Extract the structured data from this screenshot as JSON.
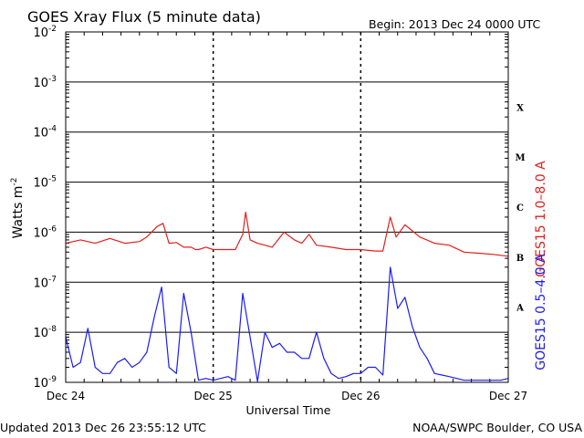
{
  "chart_data": {
    "type": "line",
    "title": "GOES Xray Flux (5 minute data)",
    "begin_label": "Begin:  2013 Dec 24 0000 UTC",
    "xlabel": "Universal Time",
    "ylabel_main": "Watts m",
    "ylabel_exp": "-2",
    "yscale": "log",
    "ylim_exponent": [
      -9,
      -2
    ],
    "xlim_days": [
      0,
      3
    ],
    "x_ticks": [
      "Dec 24",
      "Dec 25",
      "Dec 26",
      "Dec 27"
    ],
    "y_ticks": [
      {
        "exp": -2,
        "label": "-2"
      },
      {
        "exp": -3,
        "label": "-3"
      },
      {
        "exp": -4,
        "label": "-4"
      },
      {
        "exp": -5,
        "label": "-5"
      },
      {
        "exp": -6,
        "label": "-6"
      },
      {
        "exp": -7,
        "label": "-7"
      },
      {
        "exp": -8,
        "label": "-8"
      },
      {
        "exp": -9,
        "label": "-9"
      }
    ],
    "y_tick_base": "10",
    "flare_classes": [
      {
        "label": "X",
        "band_exp": -4
      },
      {
        "label": "M",
        "band_exp": -5
      },
      {
        "label": "C",
        "band_exp": -6
      },
      {
        "label": "B",
        "band_exp": -7
      },
      {
        "label": "A",
        "band_exp": -8
      }
    ],
    "series": [
      {
        "name": "GOES15 1.0–8.0 A",
        "color": "#e0201c",
        "x": [
          0.0,
          0.1,
          0.2,
          0.3,
          0.4,
          0.5,
          0.55,
          0.62,
          0.66,
          0.7,
          0.75,
          0.8,
          0.85,
          0.88,
          0.9,
          0.95,
          1.0,
          1.05,
          1.15,
          1.2,
          1.22,
          1.25,
          1.3,
          1.35,
          1.4,
          1.48,
          1.55,
          1.6,
          1.65,
          1.7,
          1.8,
          1.9,
          2.0,
          2.1,
          2.15,
          2.2,
          2.24,
          2.3,
          2.4,
          2.5,
          2.6,
          2.7,
          2.8,
          2.9,
          3.0
        ],
        "values": [
          6e-07,
          7e-07,
          6e-07,
          7.5e-07,
          6e-07,
          6.5e-07,
          8e-07,
          1.3e-06,
          1.5e-06,
          6e-07,
          6.2e-07,
          5e-07,
          5e-07,
          4.5e-07,
          4.5e-07,
          5e-07,
          4.5e-07,
          4.5e-07,
          4.5e-07,
          9e-07,
          2.5e-06,
          7e-07,
          6e-07,
          5.5e-07,
          5e-07,
          1e-06,
          7e-07,
          6e-07,
          9e-07,
          5.5e-07,
          5e-07,
          4.5e-07,
          4.5e-07,
          4.2e-07,
          4.2e-07,
          2e-06,
          8e-07,
          1.4e-06,
          8e-07,
          6e-07,
          5.5e-07,
          4e-07,
          3.8e-07,
          3.6e-07,
          3.3e-07
        ]
      },
      {
        "name": "GOES15 0.5–4.0 A",
        "color": "#1c1cf0",
        "x": [
          0.0,
          0.05,
          0.1,
          0.15,
          0.2,
          0.25,
          0.3,
          0.35,
          0.4,
          0.45,
          0.5,
          0.55,
          0.6,
          0.65,
          0.7,
          0.75,
          0.8,
          0.85,
          0.9,
          0.95,
          1.0,
          1.05,
          1.1,
          1.15,
          1.2,
          1.25,
          1.3,
          1.35,
          1.4,
          1.45,
          1.5,
          1.55,
          1.6,
          1.65,
          1.7,
          1.75,
          1.8,
          1.85,
          1.9,
          1.95,
          2.0,
          2.05,
          2.1,
          2.15,
          2.2,
          2.25,
          2.3,
          2.35,
          2.4,
          2.45,
          2.5,
          2.55,
          2.6,
          2.65,
          2.7,
          2.75,
          2.8,
          2.85,
          2.9,
          2.95,
          3.0
        ],
        "values": [
          8e-09,
          2e-09,
          2.5e-09,
          1.2e-08,
          2e-09,
          1.5e-09,
          1.5e-09,
          2.5e-09,
          3e-09,
          2e-09,
          2.5e-09,
          4e-09,
          2e-08,
          8e-08,
          2e-09,
          1.5e-09,
          6e-08,
          1e-08,
          1.1e-09,
          1.2e-09,
          1.1e-09,
          1.2e-09,
          1.3e-09,
          1.1e-09,
          6e-08,
          8e-09,
          1e-09,
          1e-08,
          5e-09,
          6e-09,
          4e-09,
          4e-09,
          3e-09,
          3e-09,
          1e-08,
          3e-09,
          1.5e-09,
          1.2e-09,
          1.3e-09,
          1.5e-09,
          1.5e-09,
          2e-09,
          2e-09,
          1.4e-09,
          2e-07,
          3e-08,
          5e-08,
          1.3e-08,
          5e-09,
          3e-09,
          1.5e-09,
          1.4e-09,
          1.3e-09,
          1.2e-09,
          1.1e-09,
          1.1e-09,
          1.1e-09,
          1.1e-09,
          1.1e-09,
          1.1e-09,
          1.2e-09
        ]
      }
    ]
  },
  "footer": {
    "updated": "Updated 2013 Dec 26 23:55:12 UTC",
    "source": "NOAA/SWPC Boulder, CO USA"
  }
}
